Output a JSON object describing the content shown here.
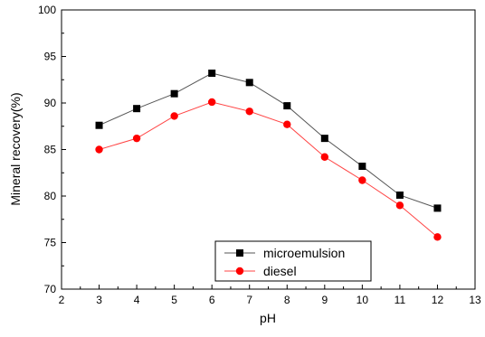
{
  "chart_data": {
    "type": "line",
    "xlabel": "pH",
    "ylabel": "Mineral recovery(%)",
    "xlim": [
      2,
      13
    ],
    "ylim": [
      70,
      100
    ],
    "xticks": [
      "2",
      "3",
      "4",
      "5",
      "6",
      "7",
      "8",
      "9",
      "10",
      "11",
      "12",
      "13"
    ],
    "yticks": [
      "70",
      "75",
      "80",
      "85",
      "90",
      "95",
      "100"
    ],
    "legend_position": "bottom-center",
    "grid": false,
    "x": [
      3,
      4,
      5,
      6,
      7,
      8,
      9,
      10,
      11,
      12
    ],
    "series": [
      {
        "name": "microemulsion",
        "marker": "square",
        "color": "#000000",
        "line_color": "#555555",
        "values": [
          87.6,
          89.4,
          91.0,
          93.2,
          92.2,
          89.7,
          86.2,
          83.2,
          80.1,
          78.7
        ]
      },
      {
        "name": "diesel",
        "marker": "circle",
        "color": "#ff0000",
        "line_color": "#ff4444",
        "values": [
          85.0,
          86.2,
          88.6,
          90.1,
          89.1,
          87.7,
          84.2,
          81.7,
          79.0,
          75.6
        ]
      }
    ]
  }
}
